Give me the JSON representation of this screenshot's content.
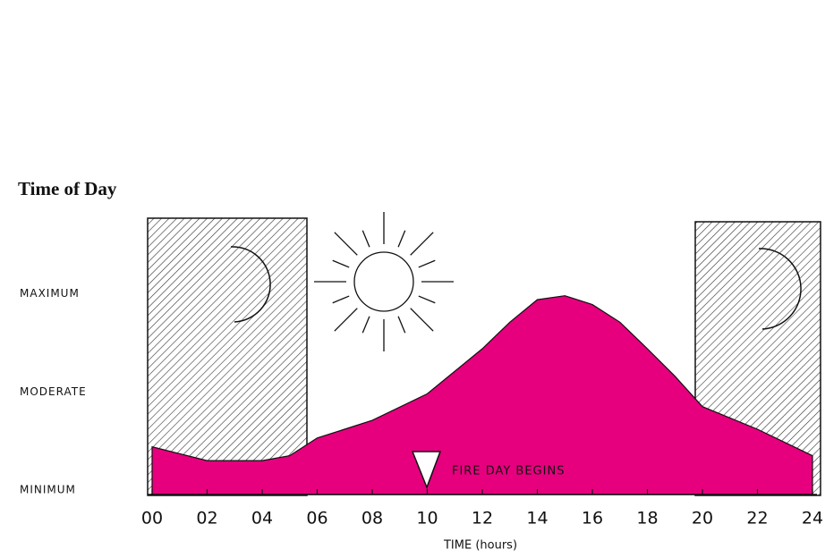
{
  "chart_data": {
    "type": "area",
    "title": "Time of Day",
    "x_label": "TIME (hours)",
    "annotation": "FIRE DAY BEGINS",
    "x": [
      0,
      2,
      4,
      5,
      6,
      8,
      10,
      12,
      13,
      14,
      15,
      16,
      17,
      18,
      19,
      20,
      22,
      24
    ],
    "values": [
      0.44,
      0.3,
      0.3,
      0.35,
      0.53,
      0.71,
      0.98,
      1.44,
      1.71,
      1.94,
      1.98,
      1.89,
      1.71,
      1.44,
      1.16,
      0.85,
      0.62,
      0.35
    ],
    "color": "#e6007e",
    "xlim": [
      0,
      24
    ],
    "xticks": [
      {
        "value": 0,
        "label": "00"
      },
      {
        "value": 2,
        "label": "02"
      },
      {
        "value": 4,
        "label": "04"
      },
      {
        "value": 6,
        "label": "06"
      },
      {
        "value": 8,
        "label": "08"
      },
      10,
      12,
      14,
      16,
      18,
      20,
      22,
      24
    ],
    "ylim": [
      0,
      2.77
    ],
    "yticks": [
      {
        "value": 0,
        "label": "MINIMUM"
      },
      {
        "value": 1,
        "label": "MODERATE"
      },
      {
        "value": 2,
        "label": "MAXIMUM"
      }
    ]
  }
}
